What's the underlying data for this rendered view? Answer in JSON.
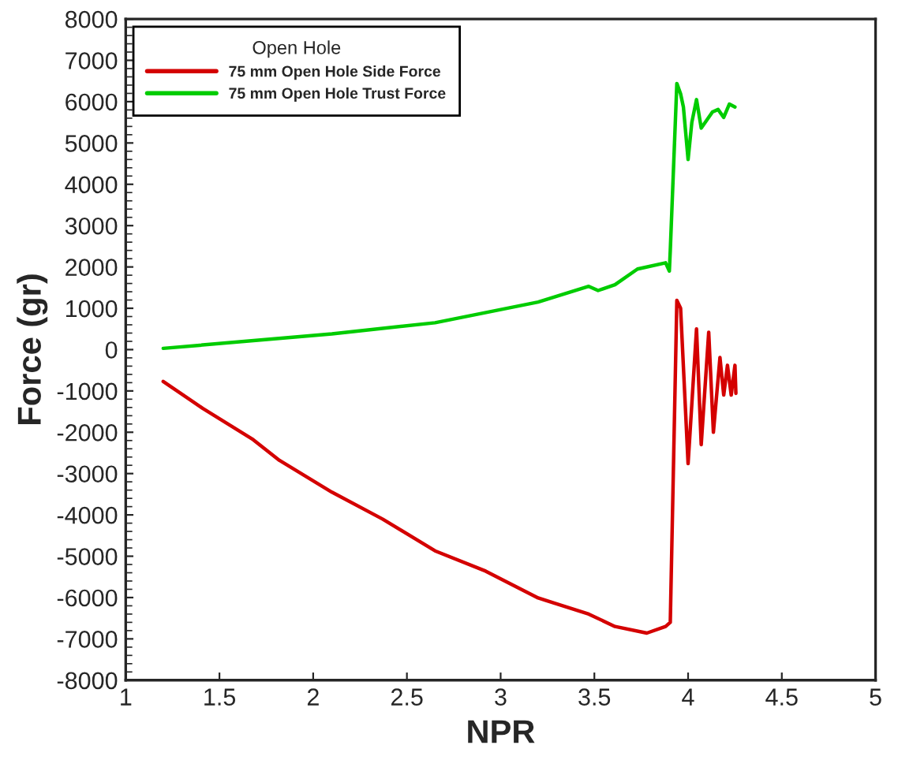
{
  "chart_data": {
    "type": "line",
    "xlabel": "NPR",
    "ylabel": "Force (gr)",
    "legend_title": "Open Hole",
    "legend": "top left",
    "grid": false,
    "marker": "none",
    "line_style": "solid",
    "xlim": [
      1,
      5
    ],
    "xticks": [
      1,
      1.5,
      2,
      2.5,
      3,
      3.5,
      4,
      4.5,
      5
    ],
    "ylim": [
      -8000,
      8000
    ],
    "yticks": [
      -8000,
      -7000,
      -6000,
      -5000,
      -4000,
      -3000,
      -2000,
      -1000,
      0,
      1000,
      2000,
      3000,
      4000,
      5000,
      6000,
      7000,
      8000
    ],
    "series": [
      {
        "name": "75 mm Open Hole Side Force",
        "color": "#d40000",
        "x": [
          1.2,
          1.41,
          1.68,
          1.82,
          2.1,
          2.37,
          2.65,
          2.92,
          3.2,
          3.47,
          3.61,
          3.78,
          3.88,
          3.905,
          3.94,
          3.96,
          4.0,
          4.045,
          4.07,
          4.11,
          4.135,
          4.17,
          4.19,
          4.21,
          4.23,
          4.25,
          4.255
        ],
        "values": [
          -770,
          -1420,
          -2180,
          -2680,
          -3450,
          -4100,
          -4870,
          -5360,
          -6010,
          -6400,
          -6700,
          -6860,
          -6700,
          -6600,
          1190,
          1000,
          -2760,
          500,
          -2300,
          420,
          -2000,
          -190,
          -1100,
          -380,
          -1100,
          -380,
          -1060
        ]
      },
      {
        "name": "75 mm Open Hole Trust Force",
        "color": "#00cc00",
        "x": [
          1.2,
          2.1,
          2.65,
          3.2,
          3.47,
          3.52,
          3.61,
          3.73,
          3.88,
          3.9,
          3.905,
          3.94,
          3.96,
          3.975,
          4.0,
          4.02,
          4.045,
          4.07,
          4.13,
          4.16,
          4.19,
          4.22,
          4.25
        ],
        "values": [
          30,
          380,
          650,
          1150,
          1530,
          1430,
          1570,
          1950,
          2100,
          1900,
          2400,
          6440,
          6190,
          5870,
          4600,
          5500,
          6050,
          5360,
          5750,
          5810,
          5620,
          5940,
          5870
        ]
      }
    ]
  }
}
